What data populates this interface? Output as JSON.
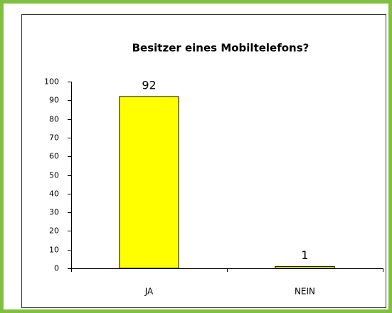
{
  "chart_data": {
    "type": "bar",
    "title": "Besitzer eines Mobiltelefons?",
    "categories": [
      "JA",
      "NEIN"
    ],
    "values": [
      92,
      1
    ],
    "color": "#ffff00",
    "ylim": [
      0,
      100
    ],
    "yticks": [
      0,
      10,
      20,
      30,
      40,
      50,
      60,
      70,
      80,
      90,
      100
    ],
    "grid": false
  }
}
